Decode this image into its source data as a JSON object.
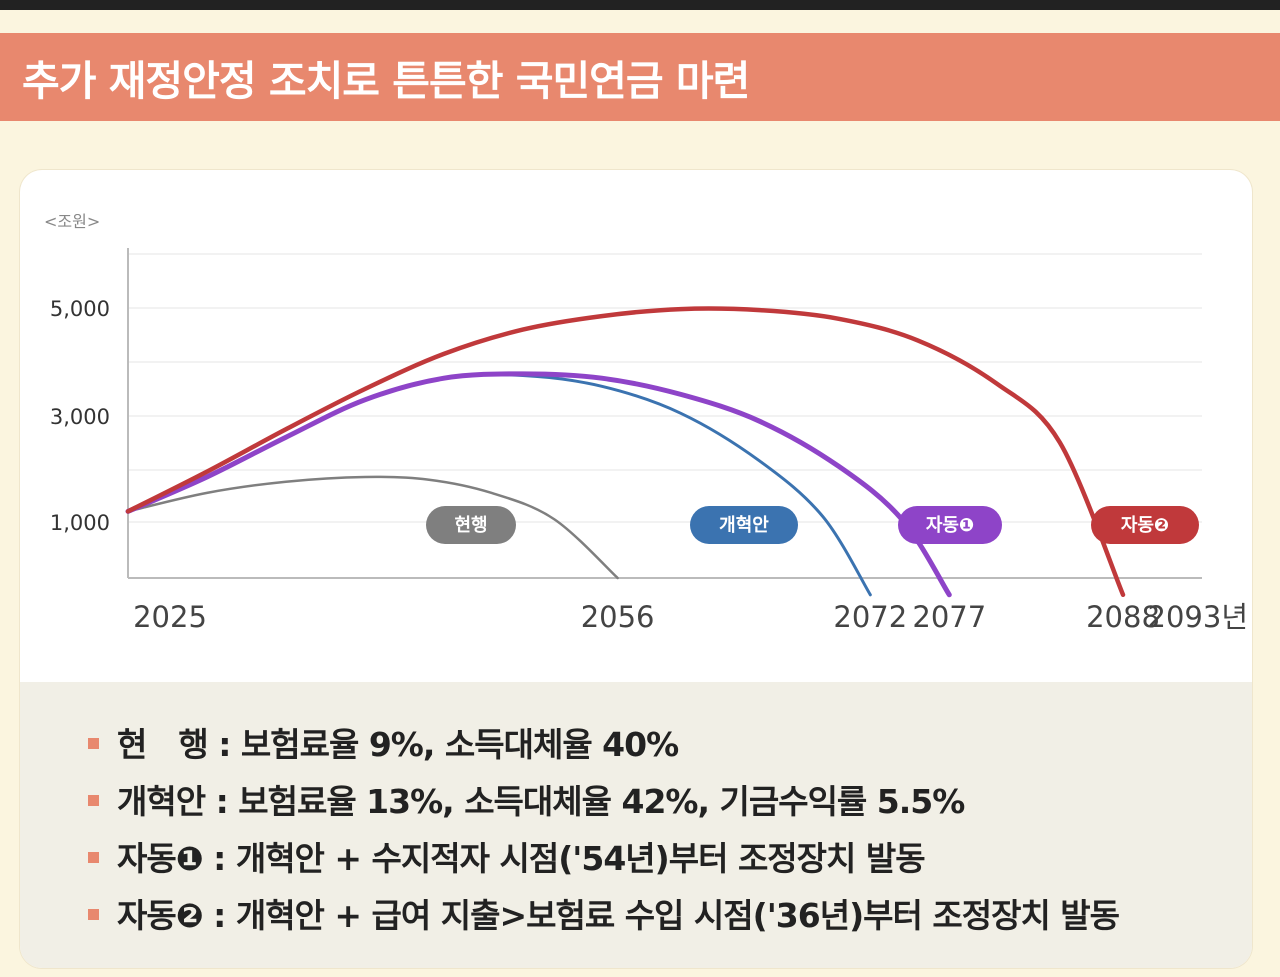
{
  "title": "추가 재정안정 조치로 튼튼한 국민연금 마련",
  "colors": {
    "title_band": "#e8886e",
    "current": "#7f7f7f",
    "reform": "#3b73b0",
    "auto1": "#8e44c8",
    "auto2": "#c0393b"
  },
  "chart_data": {
    "type": "line",
    "unit_label": "<조원>",
    "y_ticks": [
      "5,000",
      "3,000",
      "1,000"
    ],
    "y_tick_values": [
      5000,
      3000,
      1000
    ],
    "x_ticks": [
      "2025",
      "2056",
      "2072",
      "2077",
      "2088",
      "2093년"
    ],
    "x_tick_values": [
      2025,
      2056,
      2072,
      2077,
      2088,
      2093
    ],
    "xlim": [
      2025,
      2093
    ],
    "ylim": [
      0,
      6000
    ],
    "series": [
      {
        "name": "현행",
        "color": "#7f7f7f",
        "points": [
          [
            2025,
            1200
          ],
          [
            2030,
            1550
          ],
          [
            2035,
            1760
          ],
          [
            2040,
            1850
          ],
          [
            2044,
            1800
          ],
          [
            2048,
            1550
          ],
          [
            2052,
            1050
          ],
          [
            2056,
            0
          ]
        ]
      },
      {
        "name": "개혁안",
        "color": "#3b73b0",
        "points": [
          [
            2025,
            1200
          ],
          [
            2030,
            1850
          ],
          [
            2035,
            2600
          ],
          [
            2040,
            3300
          ],
          [
            2045,
            3700
          ],
          [
            2050,
            3750
          ],
          [
            2055,
            3550
          ],
          [
            2060,
            3050
          ],
          [
            2065,
            2150
          ],
          [
            2069,
            1100
          ],
          [
            2072,
            -300
          ]
        ]
      },
      {
        "name": "자동❶",
        "color": "#8e44c8",
        "points": [
          [
            2025,
            1200
          ],
          [
            2030,
            1850
          ],
          [
            2035,
            2600
          ],
          [
            2040,
            3300
          ],
          [
            2045,
            3700
          ],
          [
            2050,
            3780
          ],
          [
            2055,
            3700
          ],
          [
            2060,
            3400
          ],
          [
            2065,
            2900
          ],
          [
            2070,
            2050
          ],
          [
            2074,
            1050
          ],
          [
            2077,
            -300
          ]
        ]
      },
      {
        "name": "자동❷",
        "color": "#c0393b",
        "points": [
          [
            2025,
            1200
          ],
          [
            2030,
            1950
          ],
          [
            2035,
            2750
          ],
          [
            2040,
            3500
          ],
          [
            2045,
            4150
          ],
          [
            2050,
            4600
          ],
          [
            2055,
            4850
          ],
          [
            2060,
            4980
          ],
          [
            2065,
            4960
          ],
          [
            2070,
            4800
          ],
          [
            2075,
            4400
          ],
          [
            2080,
            3600
          ],
          [
            2084,
            2500
          ],
          [
            2088,
            -300
          ]
        ]
      }
    ]
  },
  "pills": [
    {
      "label": "현행",
      "color": "#7f7f7f"
    },
    {
      "label": "개혁안",
      "color": "#3b73b0"
    },
    {
      "label": "자동❶",
      "color": "#8e44c8"
    },
    {
      "label": "자동❷",
      "color": "#c0393b"
    }
  ],
  "notes": [
    "현　행 : 보험료율 9%, 소득대체율 40%",
    "개혁안 : 보험료율 13%, 소득대체율 42%, 기금수익률 5.5%",
    "자동❶ : 개혁안 + 수지적자 시점('54년)부터 조정장치 발동",
    "자동❷ : 개혁안 + 급여 지출>보험료 수입 시점('36년)부터 조정장치 발동"
  ]
}
